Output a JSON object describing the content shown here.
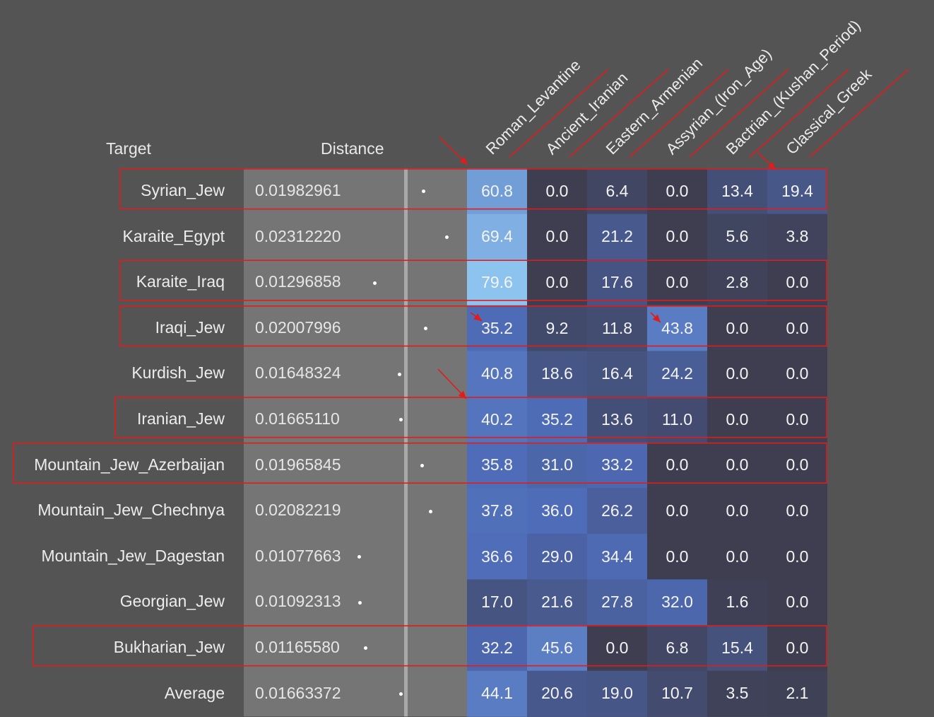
{
  "header": {
    "target_label": "Target",
    "distance_label": "Distance"
  },
  "chart_data": {
    "type": "heatmap",
    "columns": [
      "Roman_Levantine",
      "Ancient_Iranian",
      "Eastern_Armenian",
      "Assyrian_(Iron_Age)",
      "Bactrian_(Kushan_Period)",
      "Classical_Greek"
    ],
    "rows": [
      {
        "target": "Syrian_Jew",
        "distance": "0.01982961",
        "values": [
          "60.8",
          "0.0",
          "6.4",
          "0.0",
          "13.4",
          "19.4"
        ],
        "highlighted": true
      },
      {
        "target": "Karaite_Egypt",
        "distance": "0.02312220",
        "values": [
          "69.4",
          "0.0",
          "21.2",
          "0.0",
          "5.6",
          "3.8"
        ],
        "highlighted": false
      },
      {
        "target": "Karaite_Iraq",
        "distance": "0.01296858",
        "values": [
          "79.6",
          "0.0",
          "17.6",
          "0.0",
          "2.8",
          "0.0"
        ],
        "highlighted": true
      },
      {
        "target": "Iraqi_Jew",
        "distance": "0.02007996",
        "values": [
          "35.2",
          "9.2",
          "11.8",
          "43.8",
          "0.0",
          "0.0"
        ],
        "highlighted": true
      },
      {
        "target": "Kurdish_Jew",
        "distance": "0.01648324",
        "values": [
          "40.8",
          "18.6",
          "16.4",
          "24.2",
          "0.0",
          "0.0"
        ],
        "highlighted": false
      },
      {
        "target": "Iranian_Jew",
        "distance": "0.01665110",
        "values": [
          "40.2",
          "35.2",
          "13.6",
          "11.0",
          "0.0",
          "0.0"
        ],
        "highlighted": true
      },
      {
        "target": "Mountain_Jew_Azerbaijan",
        "distance": "0.01965845",
        "values": [
          "35.8",
          "31.0",
          "33.2",
          "0.0",
          "0.0",
          "0.0"
        ],
        "highlighted": true
      },
      {
        "target": "Mountain_Jew_Chechnya",
        "distance": "0.02082219",
        "values": [
          "37.8",
          "36.0",
          "26.2",
          "0.0",
          "0.0",
          "0.0"
        ],
        "highlighted": false
      },
      {
        "target": "Mountain_Jew_Dagestan",
        "distance": "0.01077663",
        "values": [
          "36.6",
          "29.0",
          "34.4",
          "0.0",
          "0.0",
          "0.0"
        ],
        "highlighted": false
      },
      {
        "target": "Georgian_Jew",
        "distance": "0.01092313",
        "values": [
          "17.0",
          "21.6",
          "27.8",
          "32.0",
          "1.6",
          "0.0"
        ],
        "highlighted": false
      },
      {
        "target": "Bukharian_Jew",
        "distance": "0.01165580",
        "values": [
          "32.2",
          "45.6",
          "0.0",
          "6.8",
          "15.4",
          "0.0"
        ],
        "highlighted": true
      },
      {
        "target": "Average",
        "distance": "0.01663372",
        "values": [
          "44.1",
          "20.6",
          "19.0",
          "10.7",
          "3.5",
          "2.1"
        ],
        "highlighted": false
      }
    ],
    "distance_bar_range": [
      0.008,
      0.026
    ],
    "color_scale": {
      "low": "#3d3d4f",
      "high": "#8dc0ef"
    },
    "annotation_color": "#e01c1c"
  }
}
